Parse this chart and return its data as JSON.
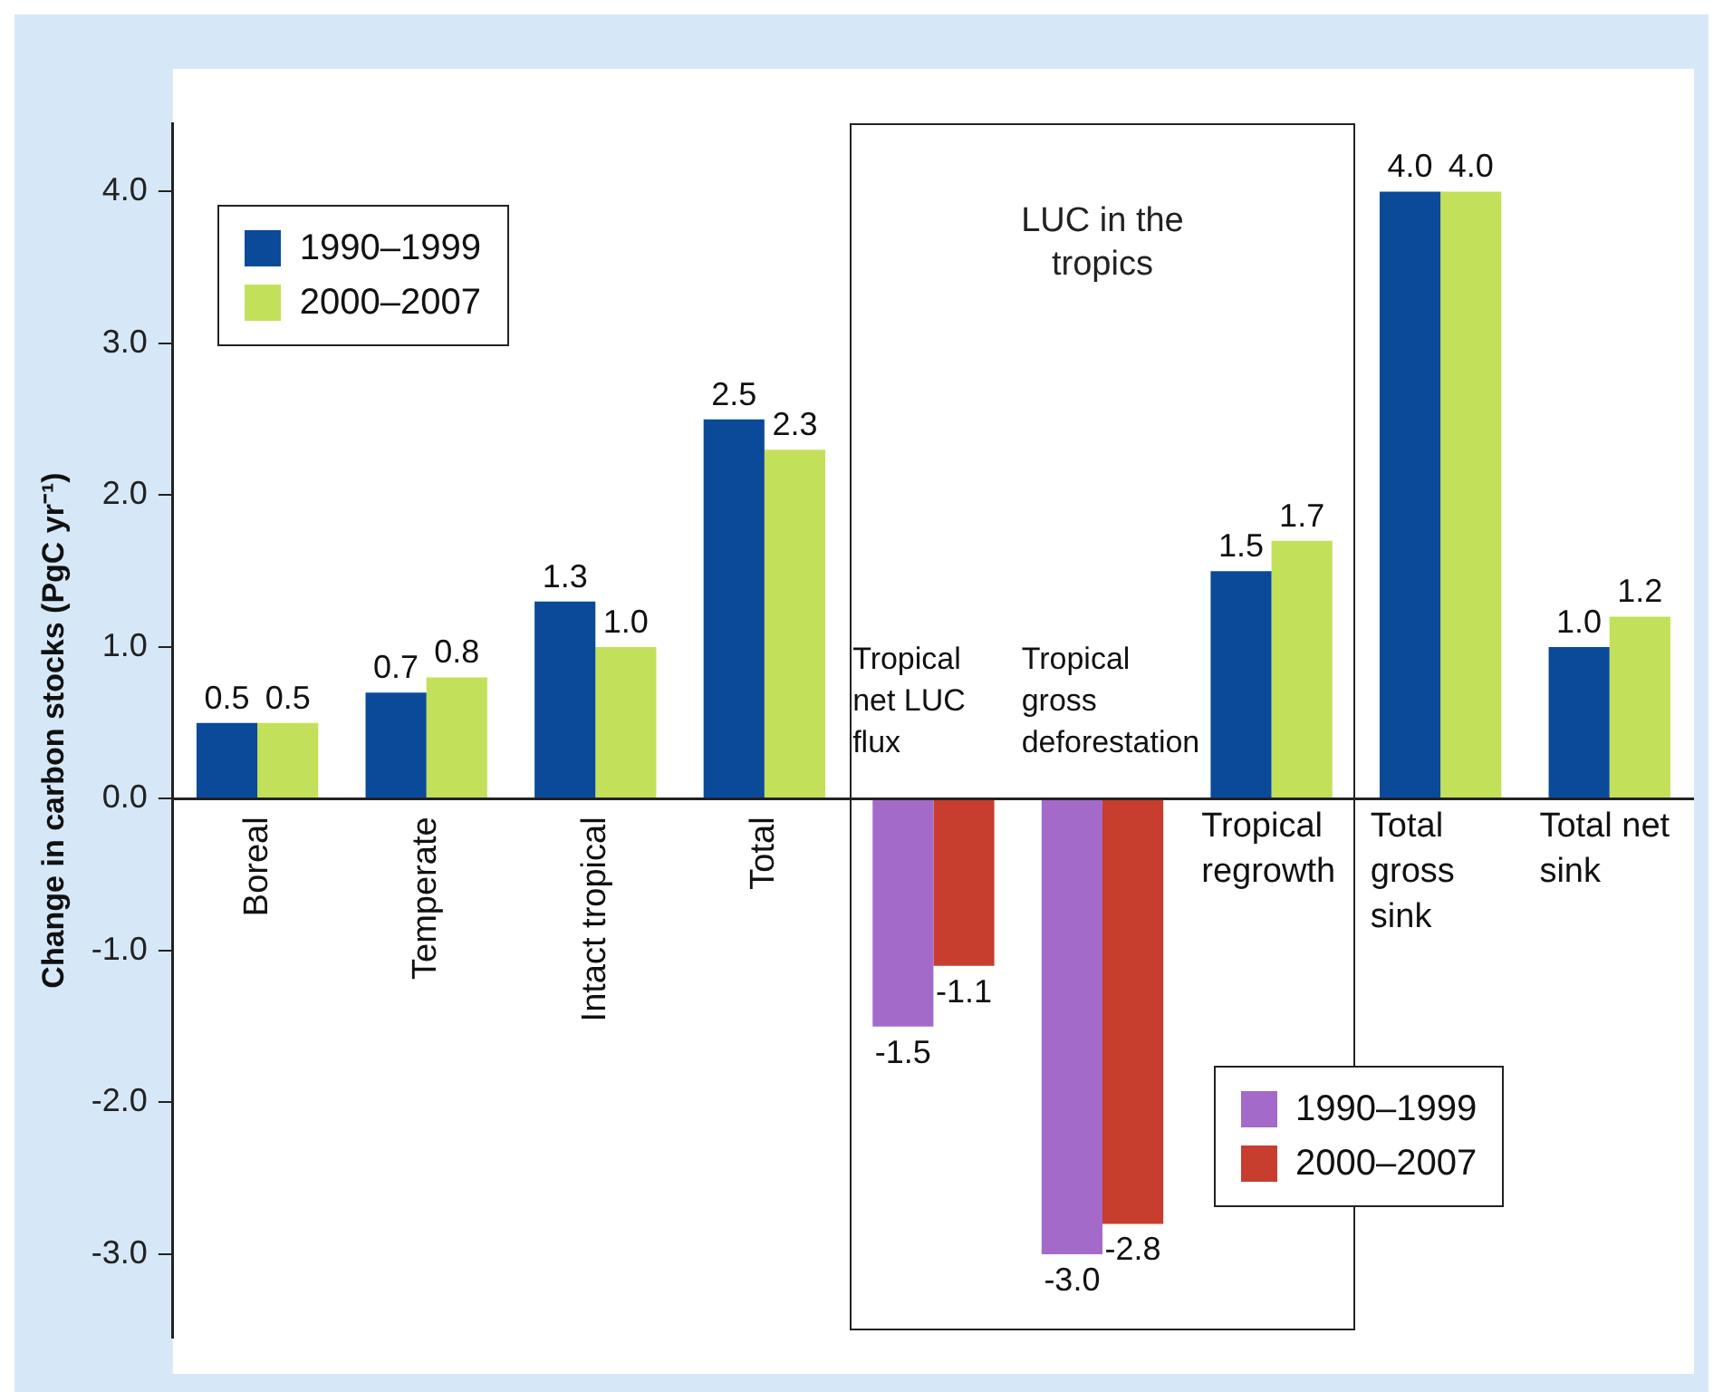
{
  "chart_data": {
    "type": "bar",
    "ylabel": "Change in carbon stocks (PgC yr⁻¹)",
    "categories": [
      "Boreal",
      "Temperate",
      "Intact tropical",
      "Total",
      "Tropical net LUC flux",
      "Tropical gross deforestation",
      "Tropical regrowth",
      "Total gross sink",
      "Total net sink"
    ],
    "series": [
      {
        "name": "1990–1999",
        "color": "#0a4a99",
        "values": [
          0.5,
          0.7,
          1.3,
          2.5,
          null,
          null,
          1.5,
          4.0,
          1.0
        ],
        "value_labels": [
          "0.5",
          "0.7",
          "1.3",
          "2.5",
          null,
          null,
          "1.5",
          "4.0",
          "1.0"
        ]
      },
      {
        "name": "2000–2007",
        "color": "#c3e05a",
        "values": [
          0.5,
          0.8,
          1.0,
          2.3,
          null,
          null,
          1.7,
          4.0,
          1.2
        ],
        "value_labels": [
          "0.5",
          "0.8",
          "1.0",
          "2.3",
          null,
          null,
          "1.7",
          "4.0",
          "1.2"
        ]
      },
      {
        "name": "1990–1999",
        "color": "#a46ac9",
        "values": [
          null,
          null,
          null,
          null,
          -1.5,
          -3.0,
          null,
          null,
          null
        ],
        "value_labels": [
          null,
          null,
          null,
          null,
          "-1.5",
          "-3.0",
          null,
          null,
          null
        ]
      },
      {
        "name": "2000–2007",
        "color": "#c73d2e",
        "values": [
          null,
          null,
          null,
          null,
          -1.1,
          -2.8,
          null,
          null,
          null
        ],
        "value_labels": [
          null,
          null,
          null,
          null,
          "-1.1",
          "-2.8",
          null,
          null,
          null
        ]
      }
    ],
    "ylim": [
      -3.55,
      4.45
    ],
    "yticks": [
      {
        "value": -3,
        "label": "-3.0"
      },
      {
        "value": -2,
        "label": "-2.0"
      },
      {
        "value": -1,
        "label": "-1.0"
      },
      {
        "value": 0,
        "label": "0.0"
      },
      {
        "value": 1,
        "label": "1.0"
      },
      {
        "value": 2,
        "label": "2.0"
      },
      {
        "value": 3,
        "label": "3.0"
      },
      {
        "value": 4,
        "label": "4.0"
      }
    ],
    "annotations": [
      "LUC in the tropics"
    ],
    "legend": "top left",
    "grid": false
  }
}
